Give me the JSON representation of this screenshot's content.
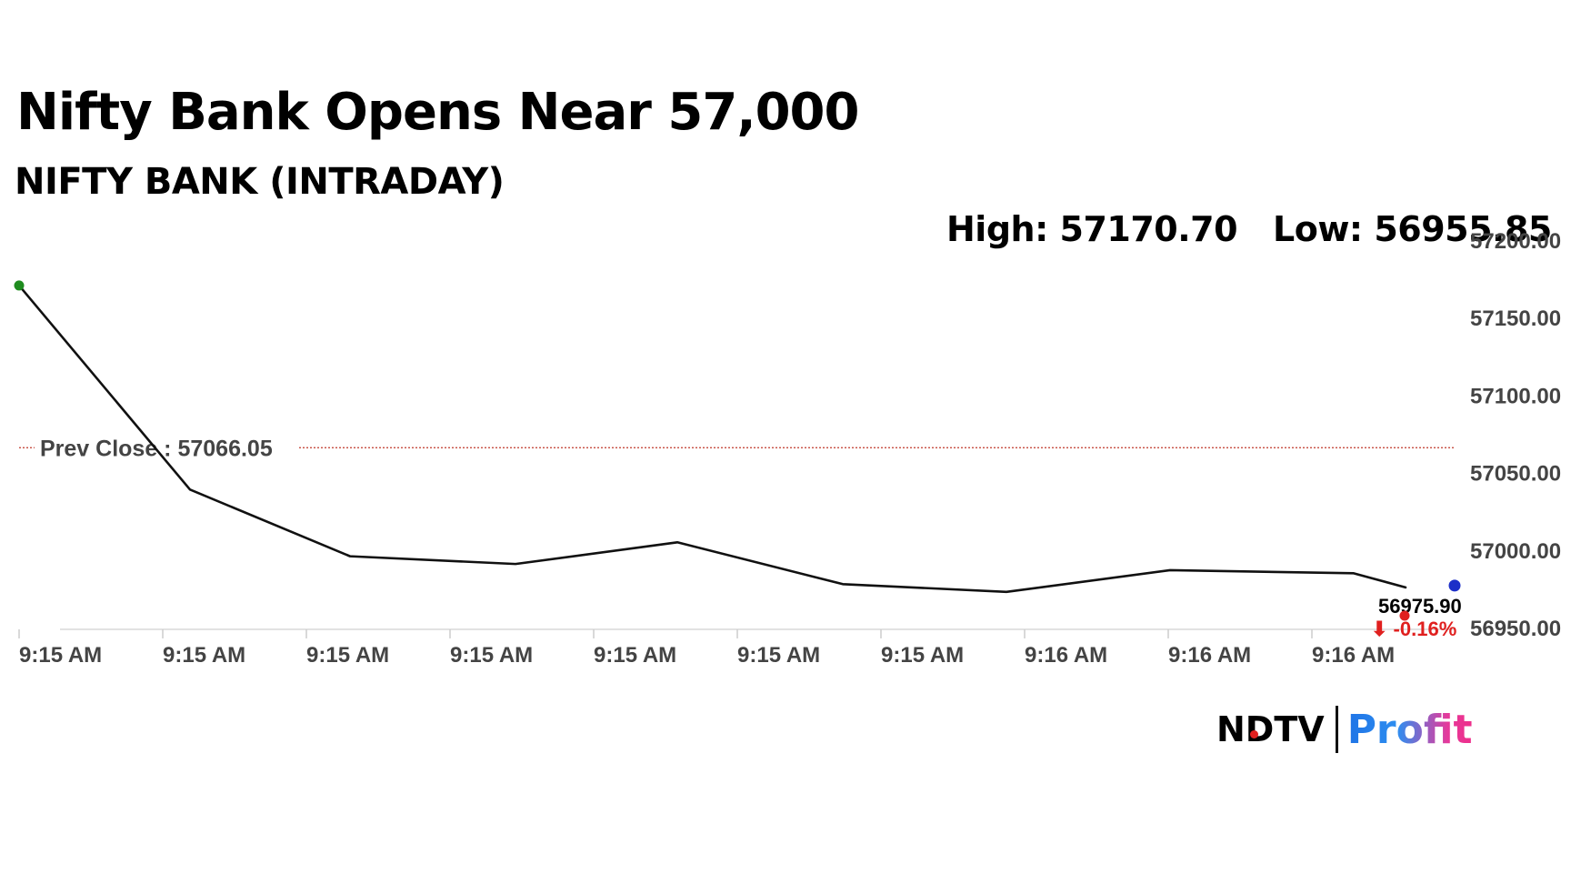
{
  "header": {
    "headline": "Nifty Bank Opens Near 57,000",
    "subtitle": "NIFTY BANK (INTRADAY)"
  },
  "stats": {
    "high": "High: 57170.70",
    "low": "Low: 56955.85"
  },
  "brand": {
    "ndtv": "NDTV",
    "profit": "Profit"
  },
  "chart_data": {
    "type": "line",
    "title": "NIFTY BANK (INTRADAY)",
    "x": [
      "9:15 AM",
      "9:15 AM",
      "9:15 AM",
      "9:15 AM",
      "9:15 AM",
      "9:15 AM",
      "9:15 AM",
      "9:16 AM",
      "9:16 AM",
      "9:16 AM"
    ],
    "tick_labels": [
      "9:15 AM",
      "9:15 AM",
      "9:15 AM",
      "9:15 AM",
      "9:15 AM",
      "9:15 AM",
      "9:15 AM",
      "9:16 AM",
      "9:16 AM",
      "9:16 AM"
    ],
    "series": [
      {
        "values": [
          57170.7,
          57039,
          56996,
          56991,
          57005,
          56978,
          56973,
          56987,
          56985,
          56975.9
        ]
      }
    ],
    "ylim": [
      56950,
      57200
    ],
    "yticks": [
      "57200.00",
      "57150.00",
      "57100.00",
      "57050.00",
      "57000.00",
      "56950.00"
    ],
    "y_tick_values": [
      57200,
      57150,
      57100,
      57050,
      57000,
      56950
    ],
    "reference_line": {
      "label": "Prev Close : 57066.05",
      "value": 57066.05
    },
    "last_value_label": "56975.90",
    "change_label": "⬇ -0.16%",
    "grid": false,
    "legend": "none",
    "colors": {
      "line": "#111111",
      "start_marker": "#1f8c1f",
      "end_marker": "#e0201f",
      "current_marker": "#1c2fc8",
      "prev_close": "#c0392b",
      "change": "#e0201f",
      "axis_text": "#444444"
    }
  }
}
